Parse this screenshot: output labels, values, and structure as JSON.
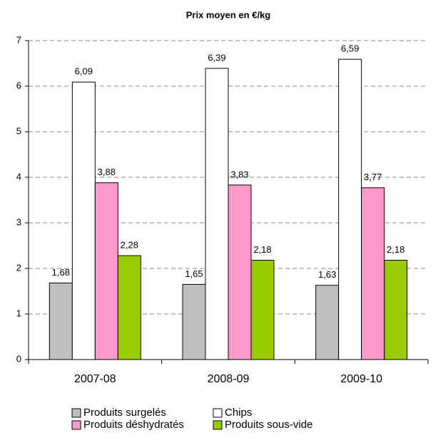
{
  "chart_data": {
    "type": "bar",
    "title": "Prix moyen en €/kg",
    "categories": [
      "2007-08",
      "2008-09",
      "2009-10"
    ],
    "series": [
      {
        "name": "Produits surgelés",
        "color": "#c0c0c0",
        "values": [
          1.68,
          1.65,
          1.63
        ],
        "value_labels": [
          "1,68",
          "1,65",
          "1,63"
        ]
      },
      {
        "name": "Chips",
        "color": "#ffffff",
        "values": [
          6.09,
          6.39,
          6.59
        ],
        "value_labels": [
          "6,09",
          "6,39",
          "6,59"
        ]
      },
      {
        "name": "Produits déshydratés",
        "color": "#ff99cc",
        "values": [
          3.88,
          3.83,
          3.77
        ],
        "value_labels": [
          "3,88",
          "3,83",
          "3,77"
        ]
      },
      {
        "name": "Produits sous-vide",
        "color": "#99cc00",
        "values": [
          2.28,
          2.18,
          2.18
        ],
        "value_labels": [
          "2,28",
          "2,18",
          "2,18"
        ]
      }
    ],
    "ylim": [
      0,
      7
    ],
    "yticks": [
      0,
      1,
      2,
      3,
      4,
      5,
      6,
      7
    ],
    "grid": true
  }
}
